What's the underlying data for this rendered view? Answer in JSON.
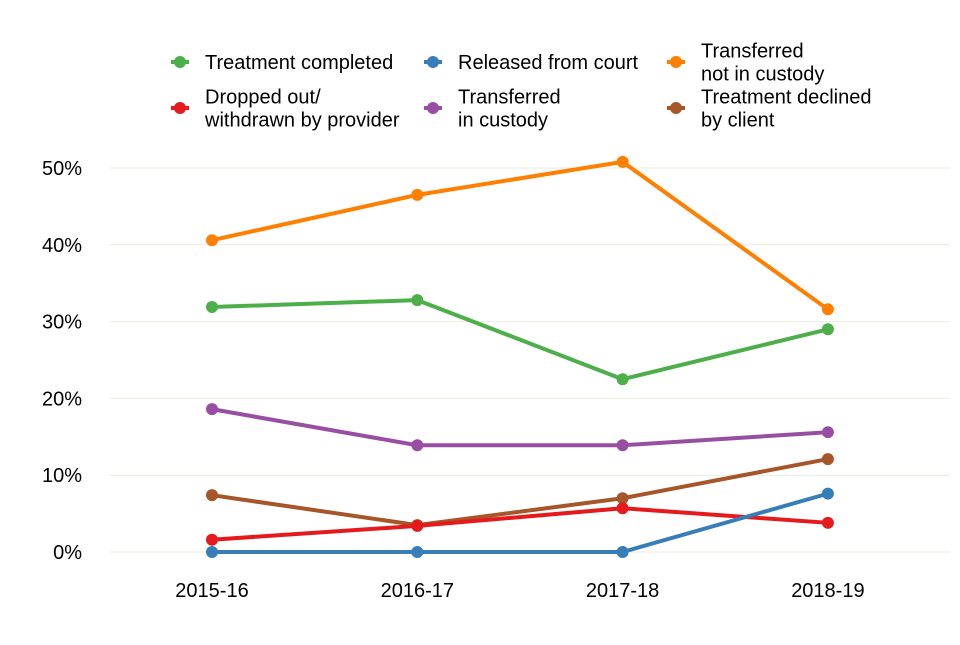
{
  "chart_data": {
    "type": "line",
    "title": "",
    "xlabel": "",
    "ylabel": "",
    "categories": [
      "2015-16",
      "2016-17",
      "2017-18",
      "2018-19"
    ],
    "ylim": [
      0,
      50
    ],
    "yticks": [
      0,
      10,
      20,
      30,
      40,
      50
    ],
    "ytick_labels": [
      "0%",
      "10%",
      "20%",
      "30%",
      "40%",
      "50%"
    ],
    "grid": "horizontal",
    "legend_placement": "top",
    "series": [
      {
        "name": "Treatment completed",
        "color": "#4DAF4A",
        "values": [
          31.9,
          32.8,
          22.5,
          29.0
        ]
      },
      {
        "name": "Released from court",
        "color": "#377EB8",
        "values": [
          0,
          0,
          0,
          7.6
        ]
      },
      {
        "name": "Transferred\nnot in custody",
        "color": "#FF7F00",
        "values": [
          40.6,
          46.5,
          50.8,
          31.6
        ]
      },
      {
        "name": "Dropped out/\nwithdrawn by provider",
        "color": "#E41A1C",
        "values": [
          1.6,
          3.4,
          5.7,
          3.8
        ]
      },
      {
        "name": "Transferred\nin custody",
        "color": "#984EA3",
        "values": [
          18.6,
          13.9,
          13.9,
          15.6
        ]
      },
      {
        "name": "Treatment declined\nby client",
        "color": "#A65628",
        "values": [
          7.4,
          3.5,
          7.0,
          12.1
        ]
      }
    ]
  }
}
